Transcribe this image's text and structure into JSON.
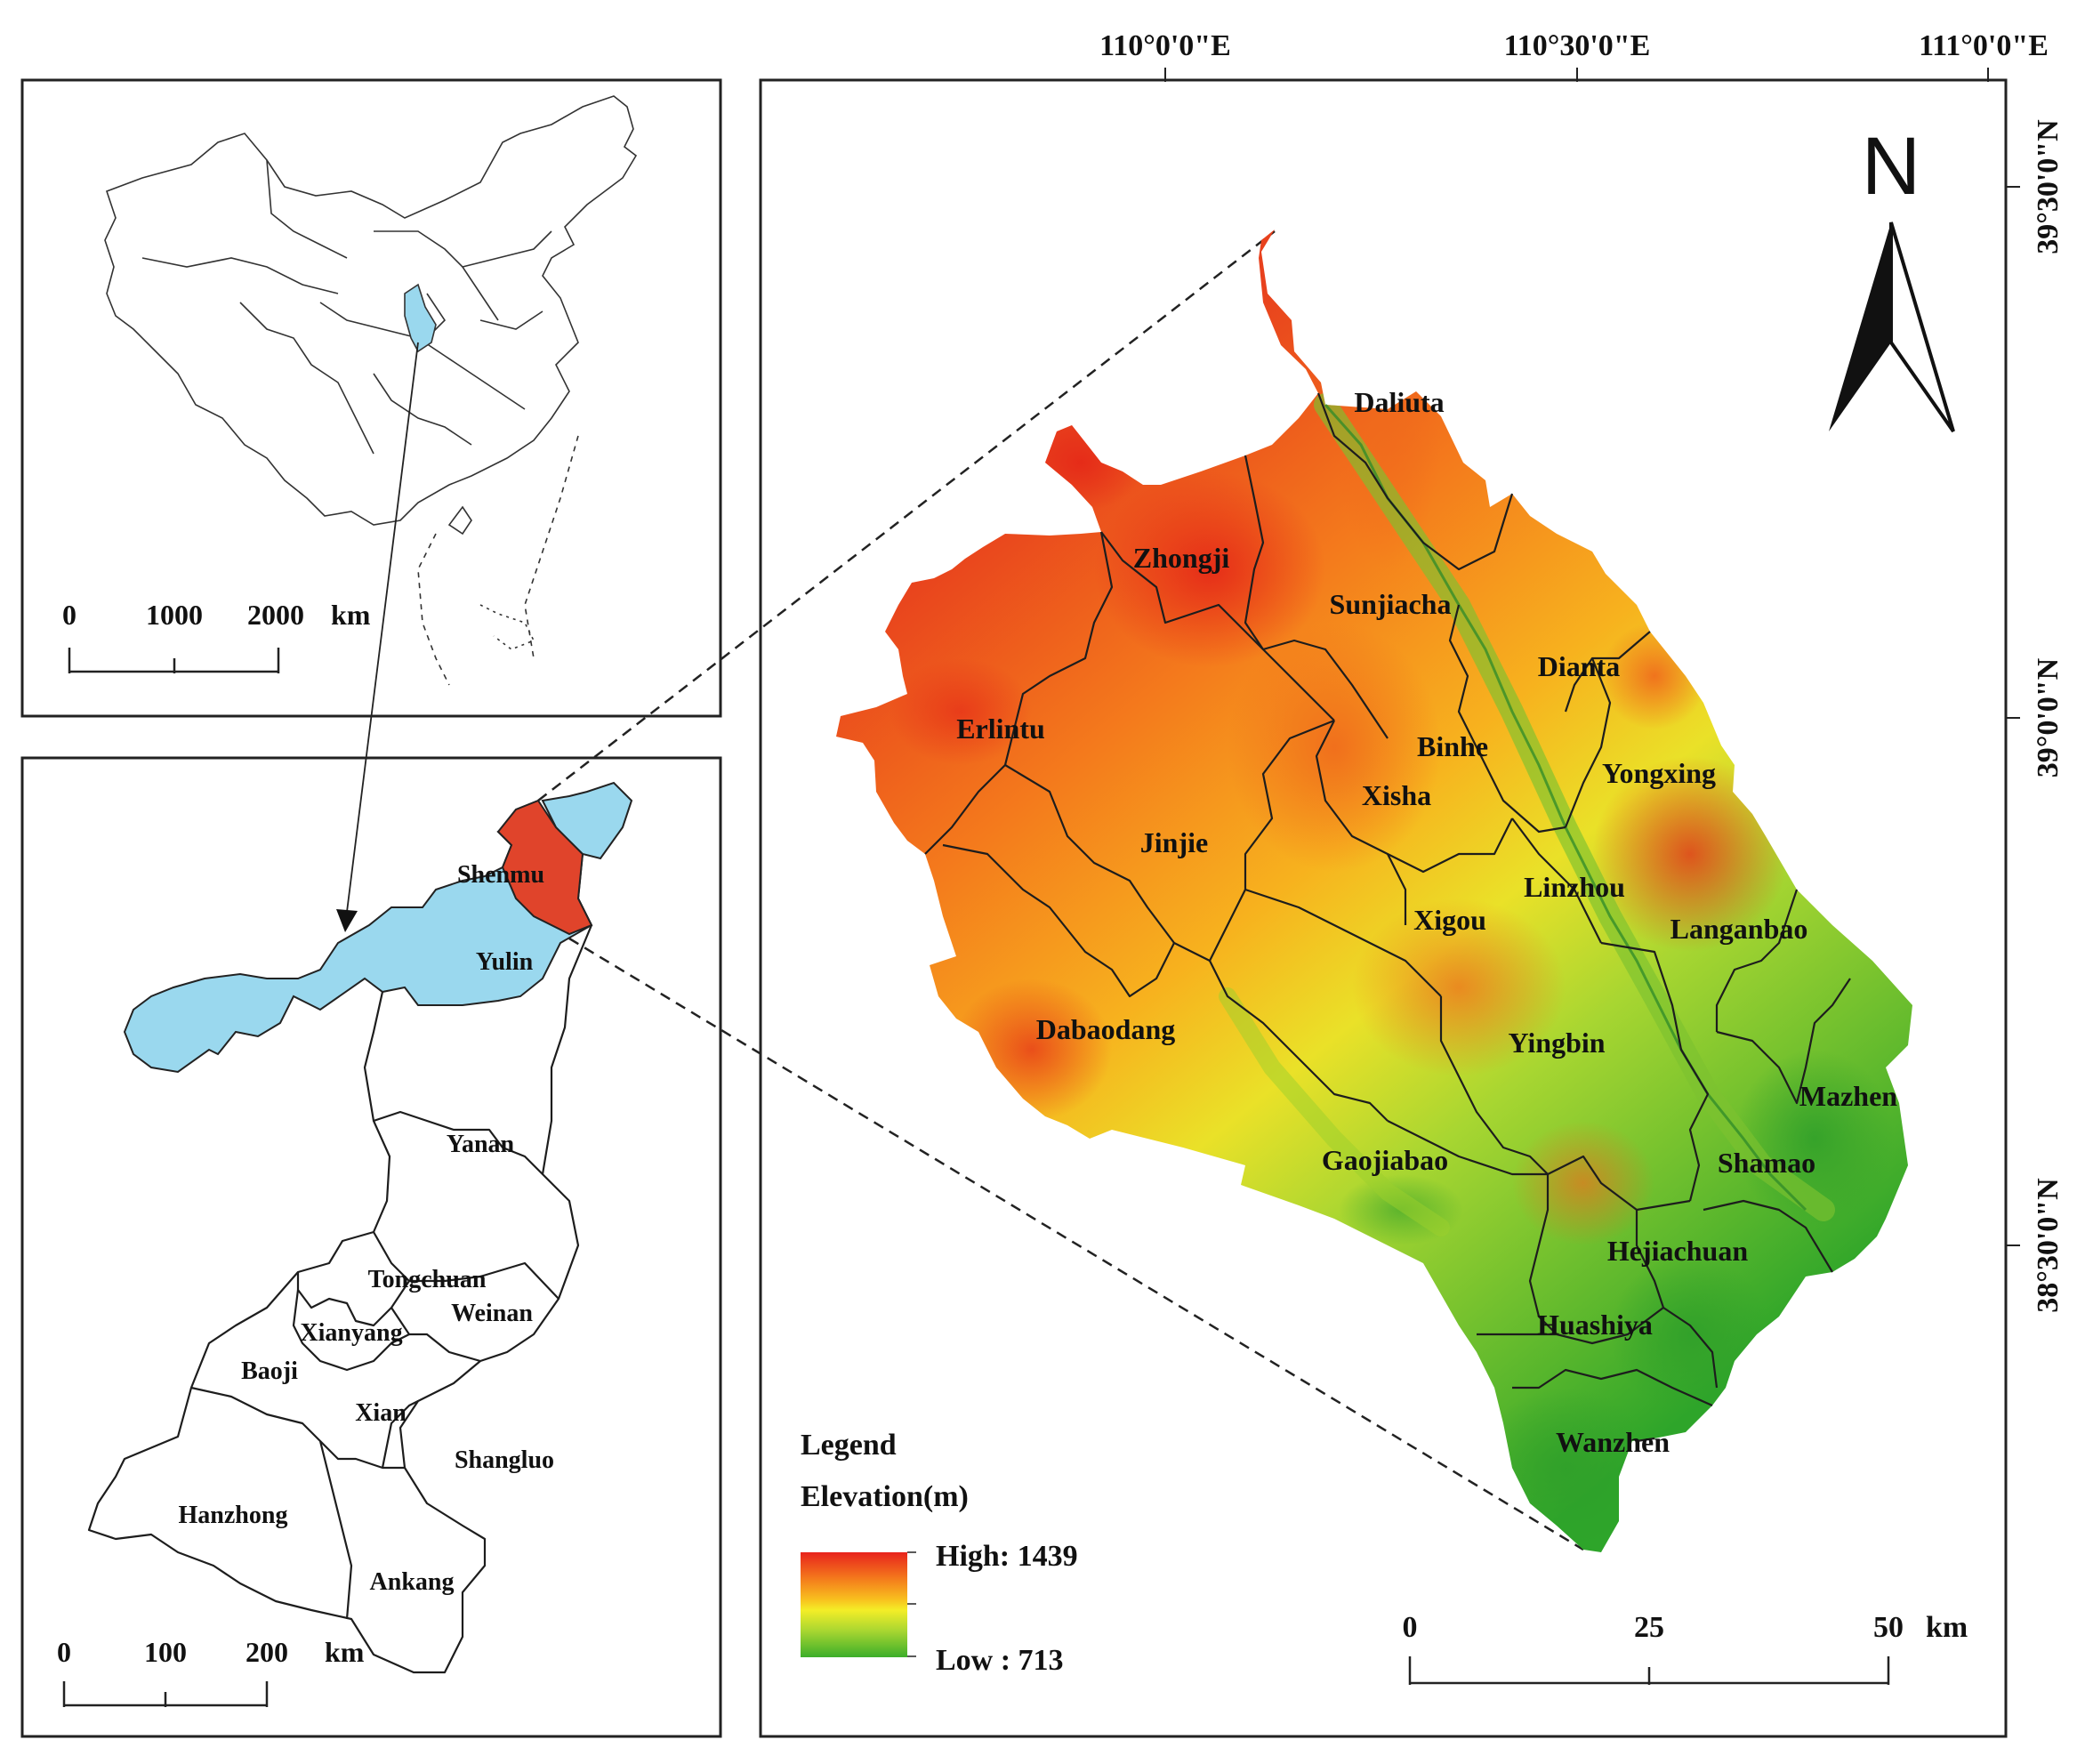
{
  "inset_china": {
    "scale": {
      "ticks": [
        "0",
        "1000",
        "2000"
      ],
      "unit": "km"
    },
    "highlight_color": "#9ad8ee"
  },
  "inset_shaanxi": {
    "regions": [
      "Shenmu",
      "Yulin",
      "Yanan",
      "Tongchuan",
      "Xianyang",
      "Weinan",
      "Baoji",
      "Xian",
      "Shangluo",
      "Hanzhong",
      "Ankang"
    ],
    "shenmu_color": "#e0442b",
    "yulin_color": "#9ad8ee",
    "scale": {
      "ticks": [
        "0",
        "100",
        "200"
      ],
      "unit": "km"
    }
  },
  "main_map": {
    "north_arrow": "N",
    "longitude_labels": [
      "110°0'0\"E",
      "110°30'0\"E",
      "111°0'0\"E"
    ],
    "latitude_labels": [
      "39°30'0\"N",
      "39°0'0\"N",
      "38°30'0\"N"
    ],
    "towns": [
      "Daliuta",
      "Zhongji",
      "Sunjiacha",
      "Dianta",
      "Erlintu",
      "Binhe",
      "Yongxing",
      "Xisha",
      "Jinjie",
      "Linzhou",
      "Xigou",
      "Langanbao",
      "Dabaodang",
      "Yingbin",
      "Mazhen",
      "Gaojiabao",
      "Shamao",
      "Hejiachuan",
      "Huashiya",
      "Wanzhen"
    ],
    "legend": {
      "title": "Legend",
      "subtitle": "Elevation(m)",
      "high": "High: 1439",
      "low": "Low : 713",
      "colors": [
        "#e8231c",
        "#f47a1c",
        "#f8b81e",
        "#f4ee27",
        "#a8d631",
        "#3cae2a"
      ]
    },
    "scale": {
      "ticks": [
        "0",
        "25",
        "50"
      ],
      "unit": "km"
    }
  }
}
